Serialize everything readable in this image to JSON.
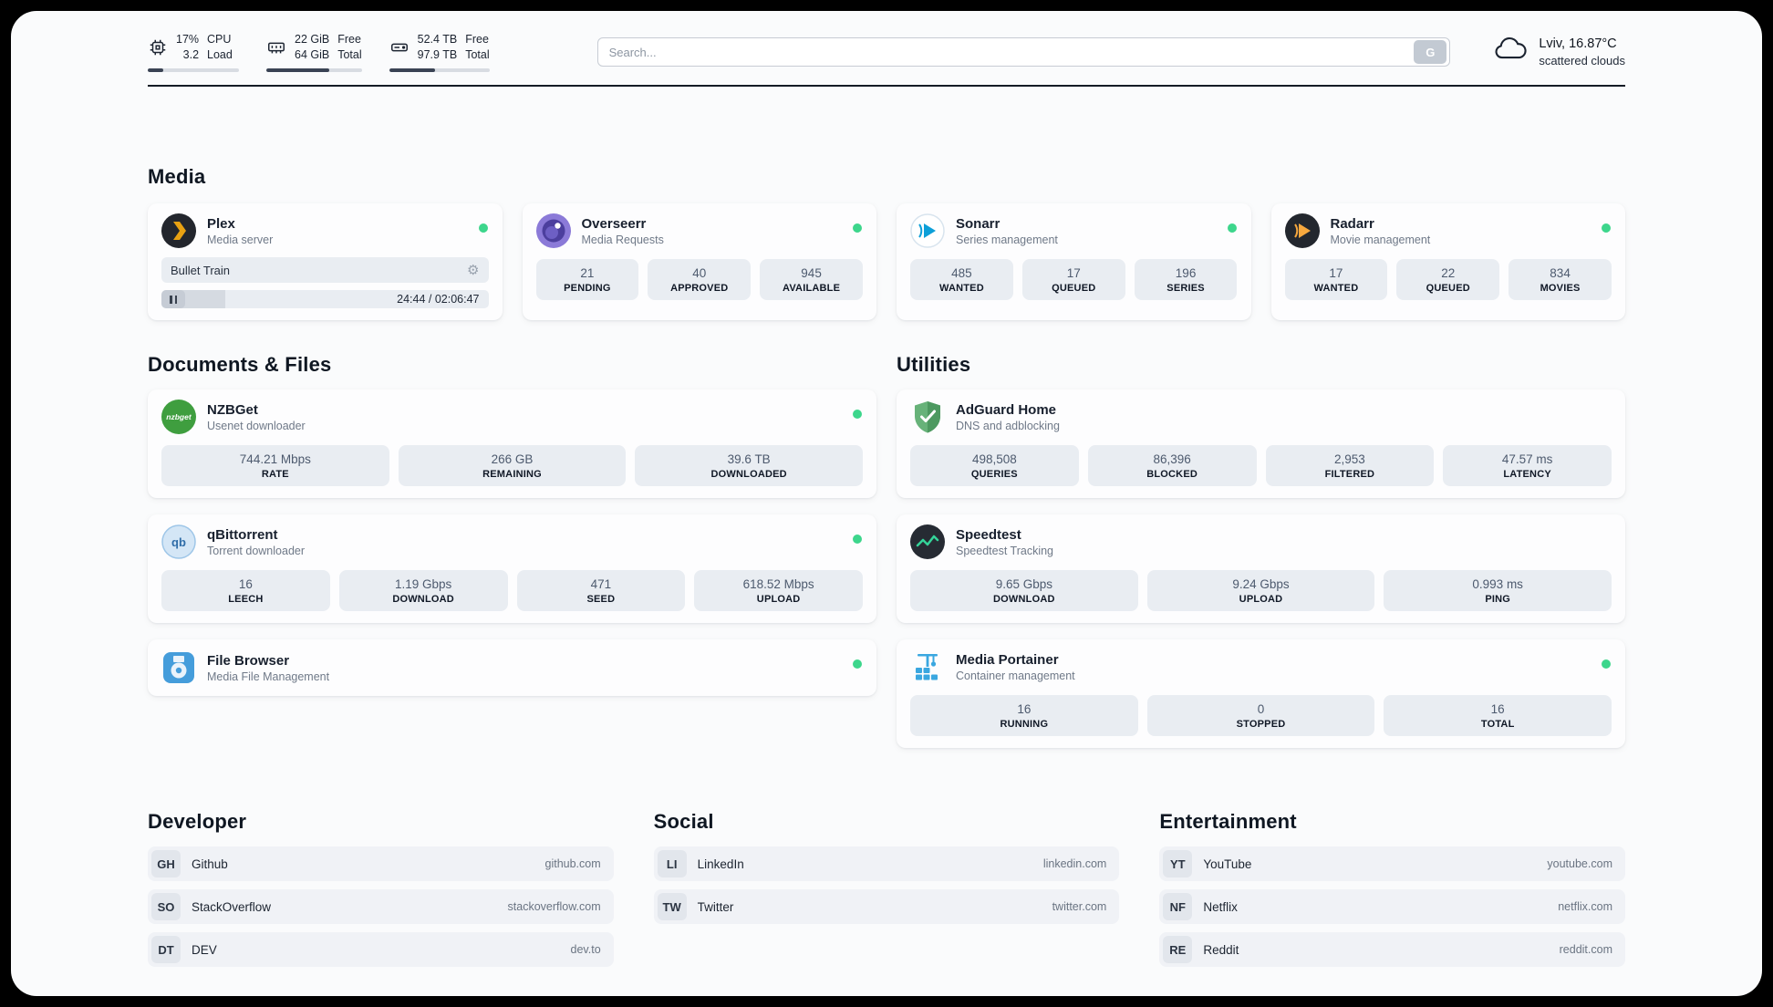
{
  "topbar": {
    "cpu": {
      "value_top": "17%",
      "value_bottom": "3.2",
      "label_top": "CPU",
      "label_bottom": "Load",
      "bar_percent": 17
    },
    "ram": {
      "value_top": "22 GiB",
      "value_bottom": "64 GiB",
      "label_top": "Free",
      "label_bottom": "Total",
      "bar_percent": 66
    },
    "disk": {
      "value_top": "52.4 TB",
      "value_bottom": "97.9 TB",
      "label_top": "Free",
      "label_bottom": "Total",
      "bar_percent": 46
    },
    "search": {
      "placeholder": "Search...",
      "button_label": "G"
    },
    "weather": {
      "location": "Lviv, 16.87°C",
      "condition": "scattered clouds"
    }
  },
  "media": {
    "section_title": "Media",
    "plex": {
      "name": "Plex",
      "subtitle": "Media server",
      "now_playing": "Bullet Train",
      "time": "24:44 / 02:06:47",
      "progress_percent": 19.5
    },
    "overseerr": {
      "name": "Overseerr",
      "subtitle": "Media Requests",
      "stats": [
        {
          "value": "21",
          "label": "PENDING"
        },
        {
          "value": "40",
          "label": "APPROVED"
        },
        {
          "value": "945",
          "label": "AVAILABLE"
        }
      ]
    },
    "sonarr": {
      "name": "Sonarr",
      "subtitle": "Series management",
      "stats": [
        {
          "value": "485",
          "label": "WANTED"
        },
        {
          "value": "17",
          "label": "QUEUED"
        },
        {
          "value": "196",
          "label": "SERIES"
        }
      ]
    },
    "radarr": {
      "name": "Radarr",
      "subtitle": "Movie management",
      "stats": [
        {
          "value": "17",
          "label": "WANTED"
        },
        {
          "value": "22",
          "label": "QUEUED"
        },
        {
          "value": "834",
          "label": "MOVIES"
        }
      ]
    }
  },
  "documents": {
    "section_title": "Documents & Files",
    "nzbget": {
      "name": "NZBGet",
      "subtitle": "Usenet downloader",
      "icon_text": "nzbget",
      "stats": [
        {
          "value": "744.21 Mbps",
          "label": "RATE"
        },
        {
          "value": "266 GB",
          "label": "REMAINING"
        },
        {
          "value": "39.6 TB",
          "label": "DOWNLOADED"
        }
      ]
    },
    "qbittorrent": {
      "name": "qBittorrent",
      "subtitle": "Torrent downloader",
      "icon_text": "qb",
      "stats": [
        {
          "value": "16",
          "label": "LEECH"
        },
        {
          "value": "1.19 Gbps",
          "label": "DOWNLOAD"
        },
        {
          "value": "471",
          "label": "SEED"
        },
        {
          "value": "618.52 Mbps",
          "label": "UPLOAD"
        }
      ]
    },
    "filebrowser": {
      "name": "File Browser",
      "subtitle": "Media File Management"
    }
  },
  "utilities": {
    "section_title": "Utilities",
    "adguard": {
      "name": "AdGuard Home",
      "subtitle": "DNS and adblocking",
      "stats": [
        {
          "value": "498,508",
          "label": "QUERIES"
        },
        {
          "value": "86,396",
          "label": "BLOCKED"
        },
        {
          "value": "2,953",
          "label": "FILTERED"
        },
        {
          "value": "47.57 ms",
          "label": "LATENCY"
        }
      ]
    },
    "speedtest": {
      "name": "Speedtest",
      "subtitle": "Speedtest Tracking",
      "stats": [
        {
          "value": "9.65 Gbps",
          "label": "DOWNLOAD"
        },
        {
          "value": "9.24 Gbps",
          "label": "UPLOAD"
        },
        {
          "value": "0.993 ms",
          "label": "PING"
        }
      ]
    },
    "portainer": {
      "name": "Media Portainer",
      "subtitle": "Container management",
      "stats": [
        {
          "value": "16",
          "label": "RUNNING"
        },
        {
          "value": "0",
          "label": "STOPPED"
        },
        {
          "value": "16",
          "label": "TOTAL"
        }
      ]
    }
  },
  "bookmarks": {
    "developer": {
      "section_title": "Developer",
      "items": [
        {
          "abbr": "GH",
          "name": "Github",
          "url": "github.com"
        },
        {
          "abbr": "SO",
          "name": "StackOverflow",
          "url": "stackoverflow.com"
        },
        {
          "abbr": "DT",
          "name": "DEV",
          "url": "dev.to"
        }
      ]
    },
    "social": {
      "section_title": "Social",
      "items": [
        {
          "abbr": "LI",
          "name": "LinkedIn",
          "url": "linkedin.com"
        },
        {
          "abbr": "TW",
          "name": "Twitter",
          "url": "twitter.com"
        }
      ]
    },
    "entertainment": {
      "section_title": "Entertainment",
      "items": [
        {
          "abbr": "YT",
          "name": "YouTube",
          "url": "youtube.com"
        },
        {
          "abbr": "NF",
          "name": "Netflix",
          "url": "netflix.com"
        },
        {
          "abbr": "RE",
          "name": "Reddit",
          "url": "reddit.com"
        }
      ]
    }
  },
  "colors": {
    "status_online": "#3dd68c",
    "plex_amber": "#e8a112",
    "adguard_green": "#67b279",
    "speedtest_green": "#34d399",
    "portainer_blue": "#3aa7e0"
  }
}
